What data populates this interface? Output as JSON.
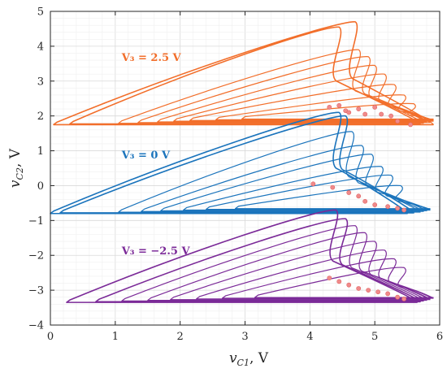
{
  "chart_data": {
    "type": "line",
    "title": "",
    "xlabel": "v_{C1}, V",
    "ylabel": "v_{C2}, V",
    "xlim": [
      0,
      6
    ],
    "ylim": [
      -4,
      5
    ],
    "xticks": [
      "0",
      "1",
      "2",
      "3",
      "4",
      "5",
      "6"
    ],
    "yticks": [
      "−4",
      "−3",
      "−2",
      "−1",
      "0",
      "1",
      "2",
      "3",
      "4",
      "5"
    ],
    "grid": "major and minor",
    "legend": "none (inline text labels)",
    "colors": {
      "series_top": "#F26E2A",
      "series_mid": "#1B74BC",
      "series_bot": "#7B2A98",
      "markers": "#F08A8A"
    },
    "series": [
      {
        "name": "V₃ = 2.5 V",
        "baseline_y": 1.75,
        "apex": [
          4.7,
          4.7
        ],
        "loops": [
          {
            "x_start": 0.1,
            "apex": [
              4.7,
              4.7
            ],
            "right_x": 5.9
          },
          {
            "x_start": 0.35,
            "apex": [
              4.45,
              4.55
            ],
            "right_x": 5.7
          },
          {
            "x_start": 1.1,
            "apex": [
              4.75,
              3.9
            ],
            "right_x": 5.75
          },
          {
            "x_start": 1.4,
            "apex": [
              4.9,
              3.7
            ],
            "right_x": 5.85
          },
          {
            "x_start": 1.7,
            "apex": [
              5.0,
              3.45
            ],
            "right_x": 5.8
          },
          {
            "x_start": 1.95,
            "apex": [
              5.15,
              3.2
            ],
            "right_x": 5.9
          },
          {
            "x_start": 2.2,
            "apex": [
              5.3,
              2.9
            ],
            "right_x": 5.9
          },
          {
            "x_start": 2.6,
            "apex": [
              5.45,
              2.6
            ],
            "right_x": 5.9
          },
          {
            "x_start": 3.0,
            "apex": [
              5.6,
              2.35
            ],
            "right_x": 5.9
          }
        ],
        "markers": [
          [
            4.3,
            2.25
          ],
          [
            4.45,
            2.3
          ],
          [
            4.55,
            2.15
          ],
          [
            4.6,
            2.1
          ],
          [
            4.75,
            2.2
          ],
          [
            4.85,
            2.05
          ],
          [
            5.0,
            2.25
          ],
          [
            5.1,
            2.05
          ],
          [
            5.25,
            2.0
          ],
          [
            5.35,
            1.85
          ],
          [
            5.55,
            1.75
          ]
        ]
      },
      {
        "name": "V₃ = 0 V",
        "baseline_y": -0.8,
        "apex": [
          4.5,
          2.1
        ],
        "loops": [
          {
            "x_start": 0.05,
            "apex": [
              4.45,
              2.1
            ],
            "right_x": 5.5
          },
          {
            "x_start": 0.2,
            "apex": [
              4.55,
              2.0
            ],
            "right_x": 5.6
          },
          {
            "x_start": 1.1,
            "apex": [
              4.65,
              1.55
            ],
            "right_x": 5.7
          },
          {
            "x_start": 1.45,
            "apex": [
              4.8,
              1.15
            ],
            "right_x": 5.75
          },
          {
            "x_start": 1.75,
            "apex": [
              4.95,
              0.9
            ],
            "right_x": 5.8
          },
          {
            "x_start": 2.1,
            "apex": [
              5.1,
              0.55
            ],
            "right_x": 5.85
          },
          {
            "x_start": 2.45,
            "apex": [
              5.25,
              0.3
            ],
            "right_x": 5.85
          },
          {
            "x_start": 2.9,
            "apex": [
              5.4,
              0.0
            ],
            "right_x": 5.85
          }
        ],
        "markers": [
          [
            4.05,
            0.05
          ],
          [
            4.35,
            -0.05
          ],
          [
            4.6,
            -0.2
          ],
          [
            4.75,
            -0.3
          ],
          [
            4.85,
            -0.45
          ],
          [
            5.0,
            -0.55
          ],
          [
            5.2,
            -0.6
          ],
          [
            5.35,
            -0.65
          ],
          [
            5.45,
            -0.7
          ]
        ]
      },
      {
        "name": "V₃ = −2.5 V",
        "baseline_y": -3.35,
        "apex": [
          4.4,
          -0.7
        ],
        "loops": [
          {
            "x_start": 0.3,
            "apex": [
              4.4,
              -0.7
            ],
            "right_x": 5.65
          },
          {
            "x_start": 0.75,
            "apex": [
              4.55,
              -0.95
            ],
            "right_x": 5.7
          },
          {
            "x_start": 1.15,
            "apex": [
              4.7,
              -1.15
            ],
            "right_x": 5.75
          },
          {
            "x_start": 1.55,
            "apex": [
              4.85,
              -1.35
            ],
            "right_x": 5.8
          },
          {
            "x_start": 1.9,
            "apex": [
              5.0,
              -1.6
            ],
            "right_x": 5.85
          },
          {
            "x_start": 2.3,
            "apex": [
              5.15,
              -1.85
            ],
            "right_x": 5.85
          },
          {
            "x_start": 2.7,
            "apex": [
              5.3,
              -2.1
            ],
            "right_x": 5.9
          },
          {
            "x_start": 3.2,
            "apex": [
              5.45,
              -2.35
            ],
            "right_x": 5.9
          }
        ],
        "markers": [
          [
            4.3,
            -2.65
          ],
          [
            4.45,
            -2.75
          ],
          [
            4.6,
            -2.85
          ],
          [
            4.75,
            -2.95
          ],
          [
            4.9,
            -3.0
          ],
          [
            5.05,
            -3.05
          ],
          [
            5.2,
            -3.1
          ],
          [
            5.35,
            -3.2
          ],
          [
            5.45,
            -3.25
          ]
        ]
      }
    ],
    "annotations": [
      {
        "text": "V₃ = 2.5 V",
        "x": 1.85,
        "y": 3.7,
        "series": 0
      },
      {
        "text": "V₃ = 0 V",
        "x": 1.85,
        "y": 0.9,
        "series": 1
      },
      {
        "text": "V₃ = −2.5 V",
        "x": 1.85,
        "y": -1.85,
        "series": 2
      }
    ]
  }
}
